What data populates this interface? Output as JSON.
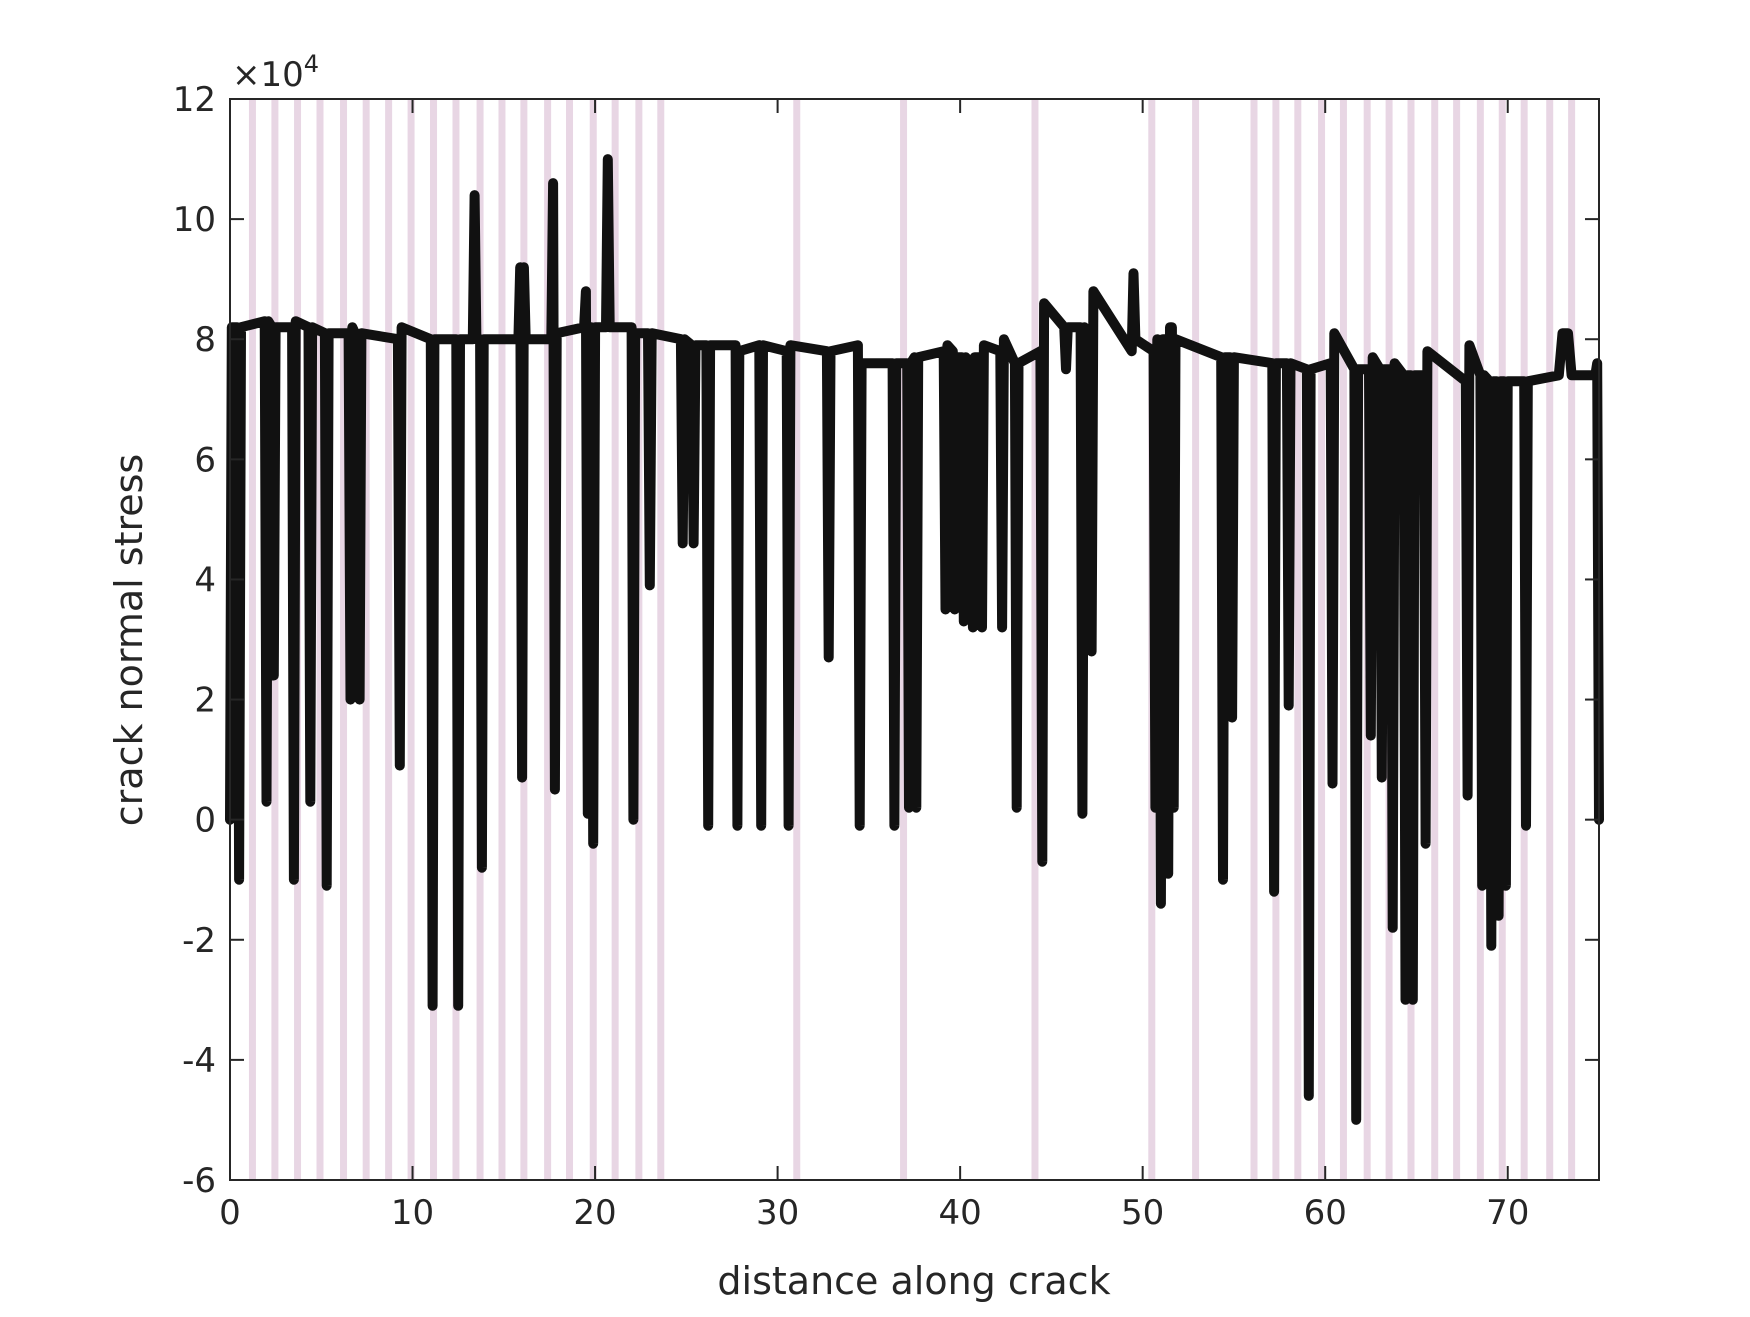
{
  "chart_data": {
    "type": "line",
    "xlabel": "distance along crack",
    "ylabel": "crack normal stress",
    "y_multiplier": {
      "base": "×10",
      "exponent": "4"
    },
    "xlim": [
      0,
      75
    ],
    "ylim": [
      -6,
      12
    ],
    "xticks": [
      0,
      10,
      20,
      30,
      40,
      50,
      60,
      70
    ],
    "yticks": [
      -6,
      -4,
      -2,
      0,
      2,
      4,
      6,
      8,
      10,
      12
    ],
    "vlines": {
      "color": "#e8d6e4",
      "x": [
        1.23,
        2.46,
        3.7,
        4.93,
        6.22,
        7.46,
        8.69,
        9.92,
        11.15,
        12.38,
        13.7,
        14.9,
        16.1,
        17.4,
        18.6,
        19.9,
        21.1,
        22.4,
        23.6,
        31.05,
        36.9,
        44.1,
        50.5,
        52.9,
        56.1,
        57.3,
        58.5,
        59.8,
        61.0,
        62.3,
        63.5,
        64.7,
        66.0,
        67.2,
        68.5,
        69.7,
        70.9,
        72.3,
        73.5
      ]
    },
    "series": [
      {
        "color": "#111111",
        "x": [
          0,
          0.1,
          0.4,
          0.5,
          0.6,
          1.9,
          2.0,
          2.1,
          2.3,
          2.4,
          2.5,
          3.4,
          3.5,
          3.6,
          4.3,
          4.4,
          4.5,
          5.2,
          5.3,
          5.4,
          6.5,
          6.6,
          6.7,
          7.0,
          7.1,
          7.2,
          9.2,
          9.3,
          9.4,
          11.0,
          11.1,
          11.2,
          12.4,
          12.5,
          12.6,
          13.3,
          13.4,
          13.5,
          13.7,
          13.8,
          13.9,
          15.8,
          15.9,
          16.0,
          16.1,
          16.2,
          17.6,
          17.7,
          17.8,
          17.9,
          19.4,
          19.5,
          19.6,
          19.7,
          19.8,
          19.9,
          20.0,
          20.6,
          20.7,
          20.8,
          22.0,
          22.1,
          22.2,
          22.9,
          23.0,
          23.1,
          24.7,
          24.8,
          24.9,
          25.3,
          25.4,
          25.5,
          26.1,
          26.2,
          26.3,
          27.7,
          27.8,
          27.9,
          29.0,
          29.1,
          29.2,
          30.5,
          30.6,
          30.7,
          32.7,
          32.8,
          32.9,
          34.4,
          34.5,
          34.6,
          36.3,
          36.4,
          36.5,
          37.1,
          37.2,
          37.3,
          37.5,
          37.6,
          37.7,
          39.1,
          39.2,
          39.3,
          39.6,
          39.7,
          39.8,
          40.1,
          40.2,
          40.3,
          40.6,
          40.7,
          40.8,
          41.1,
          41.2,
          41.3,
          42.2,
          42.3,
          42.4,
          43.0,
          43.1,
          43.2,
          44.4,
          44.5,
          44.6,
          45.7,
          45.8,
          45.9,
          46.6,
          46.7,
          46.8,
          47.1,
          47.2,
          47.3,
          49.4,
          49.5,
          49.6,
          50.6,
          50.7,
          50.8,
          50.9,
          51.0,
          51.1,
          51.3,
          51.4,
          51.5,
          51.6,
          51.7,
          51.8,
          54.3,
          54.4,
          54.5,
          54.8,
          54.9,
          55.0,
          57.1,
          57.2,
          57.3,
          57.9,
          58.0,
          58.1,
          59.0,
          59.1,
          59.2,
          60.3,
          60.4,
          60.5,
          61.6,
          61.7,
          61.8,
          62.4,
          62.5,
          62.6,
          63.0,
          63.1,
          63.2,
          63.6,
          63.7,
          63.8,
          64.3,
          64.4,
          64.5,
          64.7,
          64.8,
          64.9,
          65.4,
          65.5,
          65.6,
          67.7,
          67.8,
          67.9,
          68.5,
          68.6,
          68.7,
          69.0,
          69.1,
          69.2,
          69.4,
          69.5,
          69.6,
          69.8,
          69.9,
          70.0,
          70.9,
          71.0,
          71.1,
          72.8,
          73.0,
          73.3,
          73.5,
          74.8,
          74.9,
          75.0
        ],
        "values": [
          0,
          8.2,
          8.2,
          -1,
          8.2,
          8.3,
          0.3,
          8.3,
          8.2,
          2.4,
          8.2,
          8.2,
          -1,
          8.3,
          8.2,
          0.3,
          8.2,
          8.1,
          -1.1,
          8.1,
          8.1,
          2,
          8.2,
          8.0,
          2,
          8.1,
          8.0,
          0.9,
          8.2,
          8.0,
          -3.1,
          8.0,
          8.0,
          -3.1,
          8.0,
          8.0,
          10.4,
          8.0,
          8.0,
          -0.8,
          8.0,
          8.0,
          9.2,
          0.7,
          9.2,
          8.0,
          8.0,
          10.6,
          0.5,
          8.1,
          8.2,
          8.8,
          0.1,
          8.2,
          8.2,
          -0.4,
          8.2,
          8.2,
          11,
          8.2,
          8.2,
          0,
          8.1,
          8.1,
          3.9,
          8.1,
          8.0,
          4.6,
          8.0,
          7.9,
          4.6,
          7.9,
          7.9,
          -0.1,
          7.9,
          7.9,
          -0.1,
          7.8,
          7.9,
          -0.1,
          7.9,
          7.8,
          -0.1,
          7.9,
          7.8,
          2.7,
          7.8,
          7.9,
          -0.1,
          7.6,
          7.6,
          -0.1,
          7.6,
          7.6,
          0.2,
          7.6,
          7.7,
          0.2,
          7.7,
          7.8,
          3.5,
          7.9,
          7.8,
          3.5,
          7.7,
          7.7,
          3.3,
          7.7,
          7.6,
          3.2,
          7.7,
          7.7,
          3.2,
          7.9,
          7.8,
          3.2,
          8.0,
          7.6,
          0.2,
          7.6,
          7.8,
          -0.7,
          8.6,
          8.2,
          7.5,
          8.2,
          8.2,
          0.1,
          8.2,
          8.1,
          2.8,
          8.8,
          7.8,
          9.1,
          8.0,
          7.8,
          0.2,
          8.0,
          7.8,
          -1.4,
          8.0,
          8.0,
          -0.9,
          8.2,
          8.2,
          0.2,
          8.0,
          7.7,
          -1,
          7.7,
          7.7,
          1.7,
          7.7,
          7.6,
          -1.2,
          7.6,
          7.6,
          1.9,
          7.6,
          7.5,
          -4.6,
          7.5,
          7.6,
          0.6,
          8.1,
          7.5,
          -5,
          7.5,
          7.5,
          1.4,
          7.7,
          7.5,
          0.7,
          7.5,
          7.5,
          -1.8,
          7.6,
          7.4,
          -3,
          7.4,
          7.4,
          -3,
          7.4,
          7.4,
          -0.4,
          7.8,
          7.3,
          0.4,
          7.9,
          7.4,
          -1.1,
          7.4,
          7.3,
          -2.1,
          7.3,
          7.3,
          -1.6,
          7.3,
          7.3,
          -1.1,
          7.3,
          7.3,
          -0.1,
          7.3,
          7.4,
          8.1,
          8.1,
          7.4,
          7.4,
          7.6,
          0
        ]
      }
    ]
  }
}
